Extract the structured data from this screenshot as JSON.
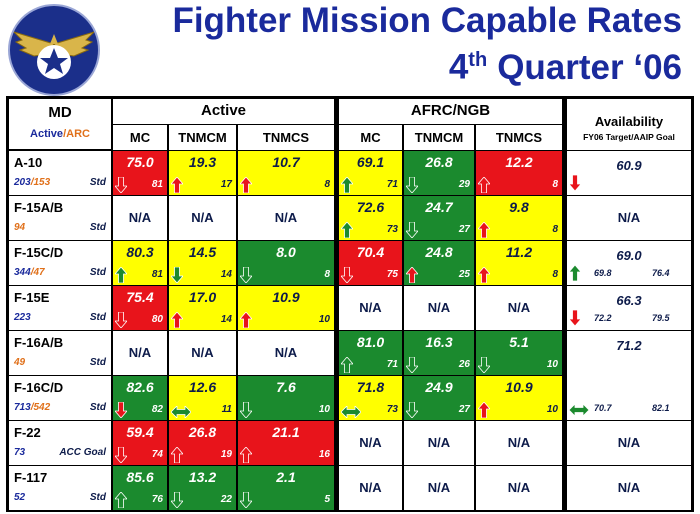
{
  "header": {
    "title": "Fighter Mission Capable Rates",
    "subtitle": {
      "number": "4",
      "suffix": "th",
      "rest": "Quarter ‘06"
    }
  },
  "table": {
    "md_header": {
      "title": "MD",
      "active": "Active",
      "arc": "/ARC"
    },
    "groups": [
      {
        "name": "Active",
        "columns": [
          "MC",
          "TNMCM",
          "TNMCS"
        ]
      },
      {
        "name": "AFRC/NGB",
        "columns": [
          "MC",
          "TNMCM",
          "TNMCS"
        ]
      }
    ],
    "availability_header": {
      "title": "Availability",
      "subtitle": "FY06 Target/AAIP Goal"
    },
    "rows": [
      {
        "md": "A-10",
        "active": "203",
        "arc": "/153",
        "std": "Std",
        "cells": [
          {
            "value": "75.0",
            "sub": "81",
            "color": "red",
            "arrow": "down",
            "arrow_color": "red"
          },
          {
            "value": "19.3",
            "sub": "17",
            "color": "yellow",
            "arrow": "up",
            "arrow_color": "red"
          },
          {
            "value": "10.7",
            "sub": "8",
            "color": "yellow",
            "arrow": "up",
            "arrow_color": "red"
          },
          {
            "value": "69.1",
            "sub": "71",
            "color": "yellow",
            "arrow": "up",
            "arrow_color": "green"
          },
          {
            "value": "26.8",
            "sub": "29",
            "color": "green",
            "arrow": "down",
            "arrow_color": "green"
          },
          {
            "value": "12.2",
            "sub": "8",
            "color": "red",
            "arrow": "up",
            "arrow_color": "red"
          }
        ],
        "availability": {
          "value": "60.9",
          "arrow": "down",
          "arrow_color": "red"
        }
      },
      {
        "md": "F-15A/B",
        "arc": "94",
        "std": "Std",
        "cells": [
          {
            "text": "N/A"
          },
          {
            "text": "N/A"
          },
          {
            "text": "N/A"
          },
          {
            "value": "72.6",
            "sub": "73",
            "color": "yellow",
            "arrow": "up",
            "arrow_color": "green"
          },
          {
            "value": "24.7",
            "sub": "27",
            "color": "green",
            "arrow": "down",
            "arrow_color": "green"
          },
          {
            "value": "9.8",
            "sub": "8",
            "color": "yellow",
            "arrow": "up",
            "arrow_color": "red"
          }
        ],
        "availability": {
          "text": "N/A"
        }
      },
      {
        "md": "F-15C/D",
        "active": "344",
        "arc": "/47",
        "std": "Std",
        "cells": [
          {
            "value": "80.3",
            "sub": "81",
            "color": "yellow",
            "arrow": "up",
            "arrow_color": "green"
          },
          {
            "value": "14.5",
            "sub": "14",
            "color": "yellow",
            "arrow": "down",
            "arrow_color": "green"
          },
          {
            "value": "8.0",
            "sub": "8",
            "color": "green",
            "arrow": "down",
            "arrow_color": "green"
          },
          {
            "value": "70.4",
            "sub": "75",
            "color": "red",
            "arrow": "down",
            "arrow_color": "red"
          },
          {
            "value": "24.8",
            "sub": "25",
            "color": "green",
            "arrow": "up",
            "arrow_color": "red"
          },
          {
            "value": "11.2",
            "sub": "8",
            "color": "yellow",
            "arrow": "up",
            "arrow_color": "red"
          }
        ],
        "availability": {
          "value": "69.0",
          "arrow": "up",
          "arrow_color": "green",
          "target": "69.8",
          "goal": "76.4"
        }
      },
      {
        "md": "F-15E",
        "active": "223",
        "std": "Std",
        "cells": [
          {
            "value": "75.4",
            "sub": "80",
            "color": "red",
            "arrow": "down",
            "arrow_color": "red"
          },
          {
            "value": "17.0",
            "sub": "14",
            "color": "yellow",
            "arrow": "up",
            "arrow_color": "red"
          },
          {
            "value": "10.9",
            "sub": "10",
            "color": "yellow",
            "arrow": "up",
            "arrow_color": "red"
          },
          {
            "text": "N/A"
          },
          {
            "text": "N/A"
          },
          {
            "text": "N/A"
          }
        ],
        "availability": {
          "value": "66.3",
          "arrow": "down",
          "arrow_color": "red",
          "target": "72.2",
          "goal": "79.5"
        }
      },
      {
        "md": "F-16A/B",
        "arc": "49",
        "std": "Std",
        "cells": [
          {
            "text": "N/A"
          },
          {
            "text": "N/A"
          },
          {
            "text": "N/A"
          },
          {
            "value": "81.0",
            "sub": "71",
            "color": "green",
            "arrow": "up",
            "arrow_color": "green"
          },
          {
            "value": "16.3",
            "sub": "26",
            "color": "green",
            "arrow": "down",
            "arrow_color": "green"
          },
          {
            "value": "5.1",
            "sub": "10",
            "color": "green",
            "arrow": "down",
            "arrow_color": "green"
          }
        ],
        "availability": {
          "value": "71.2"
        }
      },
      {
        "md": "F-16C/D",
        "active": "713",
        "arc": "/542",
        "std": "Std",
        "cells": [
          {
            "value": "82.6",
            "sub": "82",
            "color": "green",
            "arrow": "down",
            "arrow_color": "red"
          },
          {
            "value": "12.6",
            "sub": "11",
            "color": "yellow",
            "arrow": "both",
            "arrow_color": "green"
          },
          {
            "value": "7.6",
            "sub": "10",
            "color": "green",
            "arrow": "down",
            "arrow_color": "green"
          },
          {
            "value": "71.8",
            "sub": "73",
            "color": "yellow",
            "arrow": "both",
            "arrow_color": "green"
          },
          {
            "value": "24.9",
            "sub": "27",
            "color": "green",
            "arrow": "down",
            "arrow_color": "green"
          },
          {
            "value": "10.9",
            "sub": "10",
            "color": "yellow",
            "arrow": "up",
            "arrow_color": "red"
          }
        ],
        "availability": {
          "arrow": "both",
          "arrow_color": "green",
          "target": "70.7",
          "goal": "82.1"
        }
      },
      {
        "md": "F-22",
        "active": "73",
        "std": "ACC Goal",
        "cells": [
          {
            "value": "59.4",
            "sub": "74",
            "color": "red",
            "arrow": "down",
            "arrow_color": "red"
          },
          {
            "value": "26.8",
            "sub": "19",
            "color": "red",
            "arrow": "up",
            "arrow_color": "red"
          },
          {
            "value": "21.1",
            "sub": "16",
            "color": "red",
            "arrow": "up",
            "arrow_color": "red"
          },
          {
            "text": "N/A"
          },
          {
            "text": "N/A"
          },
          {
            "text": "N/A"
          }
        ],
        "availability": {
          "text": "N/A"
        }
      },
      {
        "md": "F-117",
        "active": "52",
        "std": "Std",
        "cells": [
          {
            "value": "85.6",
            "sub": "76",
            "color": "green",
            "arrow": "up",
            "arrow_color": "green"
          },
          {
            "value": "13.2",
            "sub": "22",
            "color": "green",
            "arrow": "down",
            "arrow_color": "green"
          },
          {
            "value": "2.1",
            "sub": "5",
            "color": "green",
            "arrow": "down",
            "arrow_color": "green"
          },
          {
            "text": "N/A"
          },
          {
            "text": "N/A"
          },
          {
            "text": "N/A"
          }
        ],
        "availability": {
          "text": "N/A"
        }
      }
    ]
  }
}
